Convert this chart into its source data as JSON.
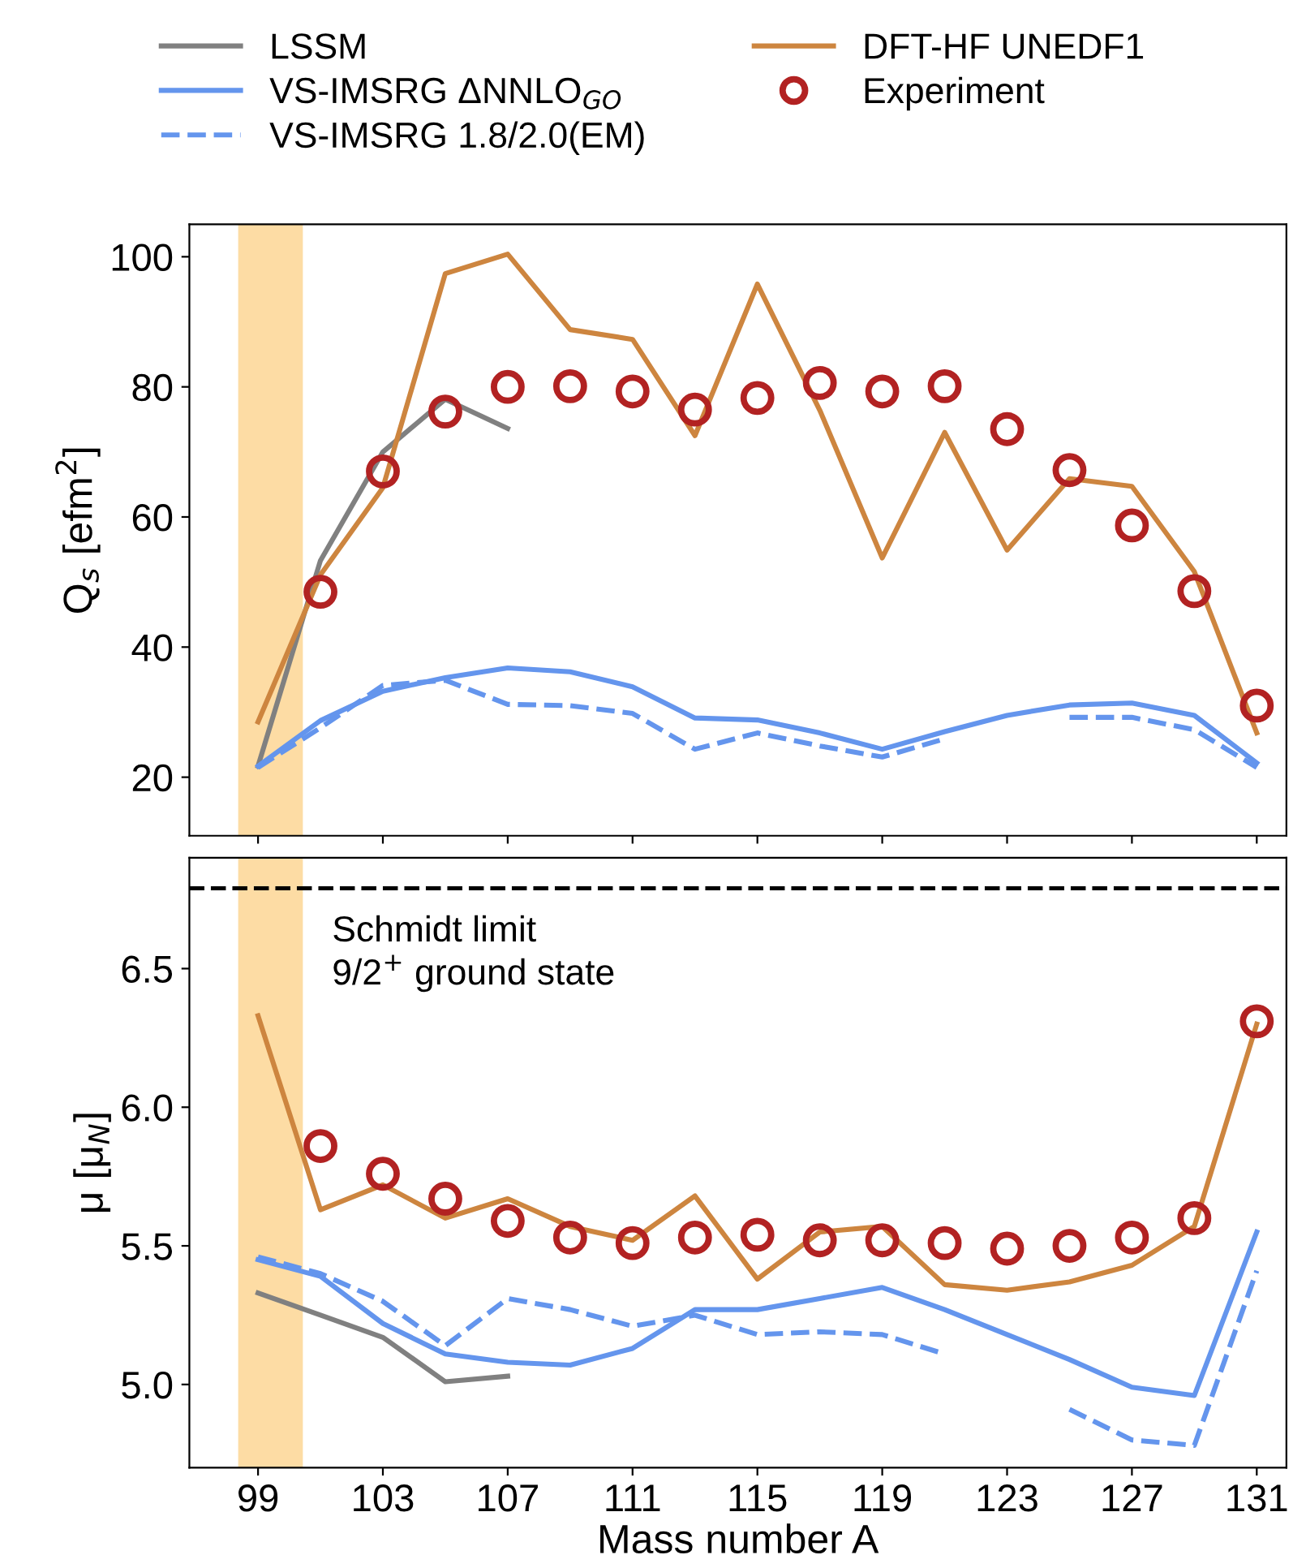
{
  "chart_data": [
    {
      "type": "line",
      "ylabel": "Q$_{s}$ [efm$^{2}$]",
      "x": [
        99,
        101,
        103,
        105,
        107,
        109,
        111,
        113,
        115,
        117,
        119,
        121,
        123,
        125,
        127,
        129,
        131
      ],
      "xlim": [
        96.8,
        131.95
      ],
      "ylim": [
        11,
        105
      ],
      "xticks": [
        99,
        103,
        107,
        111,
        115,
        119,
        123,
        127,
        131
      ],
      "yticks": [
        20,
        40,
        60,
        80,
        100
      ],
      "tick_labels": "y",
      "grid": false,
      "legend": "top",
      "bands": [
        {
          "axis": "x",
          "from": 98.4,
          "to": 100.4,
          "color": "#fdd99b"
        }
      ],
      "series": [
        {
          "name": "LSSM",
          "color": "#808080",
          "line_style": "solid",
          "values": [
            21.7,
            53.3,
            70,
            78.1,
            73.6,
            null,
            null,
            null,
            null,
            null,
            null,
            null,
            null,
            null,
            null,
            null,
            null
          ]
        },
        {
          "name": "VS-IMSRG ΔNNLO$_{GO}$",
          "color": "#6495ed",
          "line_style": "solid",
          "values": [
            21.7,
            28.7,
            33.2,
            35.3,
            36.8,
            36.2,
            33.9,
            29.1,
            28.8,
            26.8,
            24.3,
            27,
            29.5,
            31.1,
            31.4,
            29.5,
            22.2
          ]
        },
        {
          "name": "VS-IMSRG 1.8/2.0(EM)",
          "color": "#6495ed",
          "line_style": "dashed",
          "values": [
            21.5,
            27.6,
            34.1,
            34.9,
            31.2,
            31,
            29.8,
            24.3,
            26.8,
            24.8,
            23.1,
            25.9,
            null,
            29.2,
            29.2,
            27.3,
            21.5
          ]
        },
        {
          "name": "DFT-HF UNEDF1",
          "color": "#cd853f",
          "line_style": "solid",
          "values": [
            28.5,
            51.1,
            64.5,
            97.4,
            100.4,
            88.8,
            87.3,
            72.5,
            95.8,
            76.4,
            53.7,
            73,
            54.9,
            65.9,
            64.7,
            51.6,
            26.8
          ]
        },
        {
          "name": "Experiment",
          "type": "scatter",
          "marker": "circle",
          "color": "#b22222",
          "values": [
            null,
            48.5,
            67,
            76.2,
            80,
            80.1,
            79.3,
            76.5,
            78.3,
            80.6,
            79.3,
            80.1,
            73.5,
            67.2,
            58.7,
            48.6,
            31
          ]
        }
      ]
    },
    {
      "type": "line",
      "xlabel": "Mass number A",
      "ylabel": "μ [μ$_{N}$]",
      "x": [
        99,
        101,
        103,
        105,
        107,
        109,
        111,
        113,
        115,
        117,
        119,
        121,
        123,
        125,
        127,
        129,
        131
      ],
      "xlim": [
        96.8,
        131.95
      ],
      "ylim": [
        4.7,
        6.9
      ],
      "xticks": [
        99,
        103,
        107,
        111,
        115,
        119,
        123,
        127,
        131
      ],
      "yticks": [
        {
          "value": 5.0,
          "label": "5.0"
        },
        {
          "value": 5.5,
          "label": "5.5"
        },
        {
          "value": 6.0,
          "label": "6.0"
        },
        {
          "value": 6.5,
          "label": "6.5"
        }
      ],
      "grid": false,
      "bands": [
        {
          "axis": "x",
          "from": 98.4,
          "to": 100.4,
          "color": "#fdd99b"
        }
      ],
      "ref_lines": [
        {
          "axis": "y",
          "value": 6.79,
          "label": "Schmidt limit\n9/2$^{+}$ ground state",
          "color": "#000000",
          "line_style": "dashed"
        }
      ],
      "series": [
        {
          "color": "#808080",
          "line_style": "solid",
          "values": [
            5.33,
            5.25,
            5.17,
            5.01,
            5.03,
            null,
            null,
            null,
            null,
            null,
            null,
            null,
            null,
            null,
            null,
            null,
            null
          ]
        },
        {
          "color": "#6495ed",
          "line_style": "solid",
          "values": [
            5.45,
            5.39,
            5.22,
            5.11,
            5.08,
            5.07,
            5.13,
            5.27,
            5.27,
            5.31,
            5.35,
            5.27,
            5.18,
            5.09,
            4.99,
            4.96,
            5.55
          ]
        },
        {
          "color": "#6495ed",
          "line_style": "dashed",
          "values": [
            5.46,
            5.4,
            5.3,
            5.14,
            5.31,
            5.27,
            5.21,
            5.25,
            5.18,
            5.19,
            5.18,
            5.11,
            null,
            4.91,
            4.8,
            4.78,
            5.41
          ]
        },
        {
          "color": "#cd853f",
          "line_style": "solid",
          "values": [
            6.33,
            5.63,
            5.72,
            5.6,
            5.67,
            5.57,
            5.52,
            5.68,
            5.38,
            5.55,
            5.57,
            5.36,
            5.34,
            5.37,
            5.43,
            5.57,
            6.3
          ]
        },
        {
          "type": "scatter",
          "marker": "circle",
          "color": "#b22222",
          "values": [
            null,
            5.86,
            5.76,
            5.67,
            5.59,
            5.53,
            5.51,
            5.53,
            5.54,
            5.52,
            5.52,
            5.51,
            5.49,
            5.5,
            5.53,
            5.6,
            6.31
          ]
        }
      ]
    }
  ]
}
